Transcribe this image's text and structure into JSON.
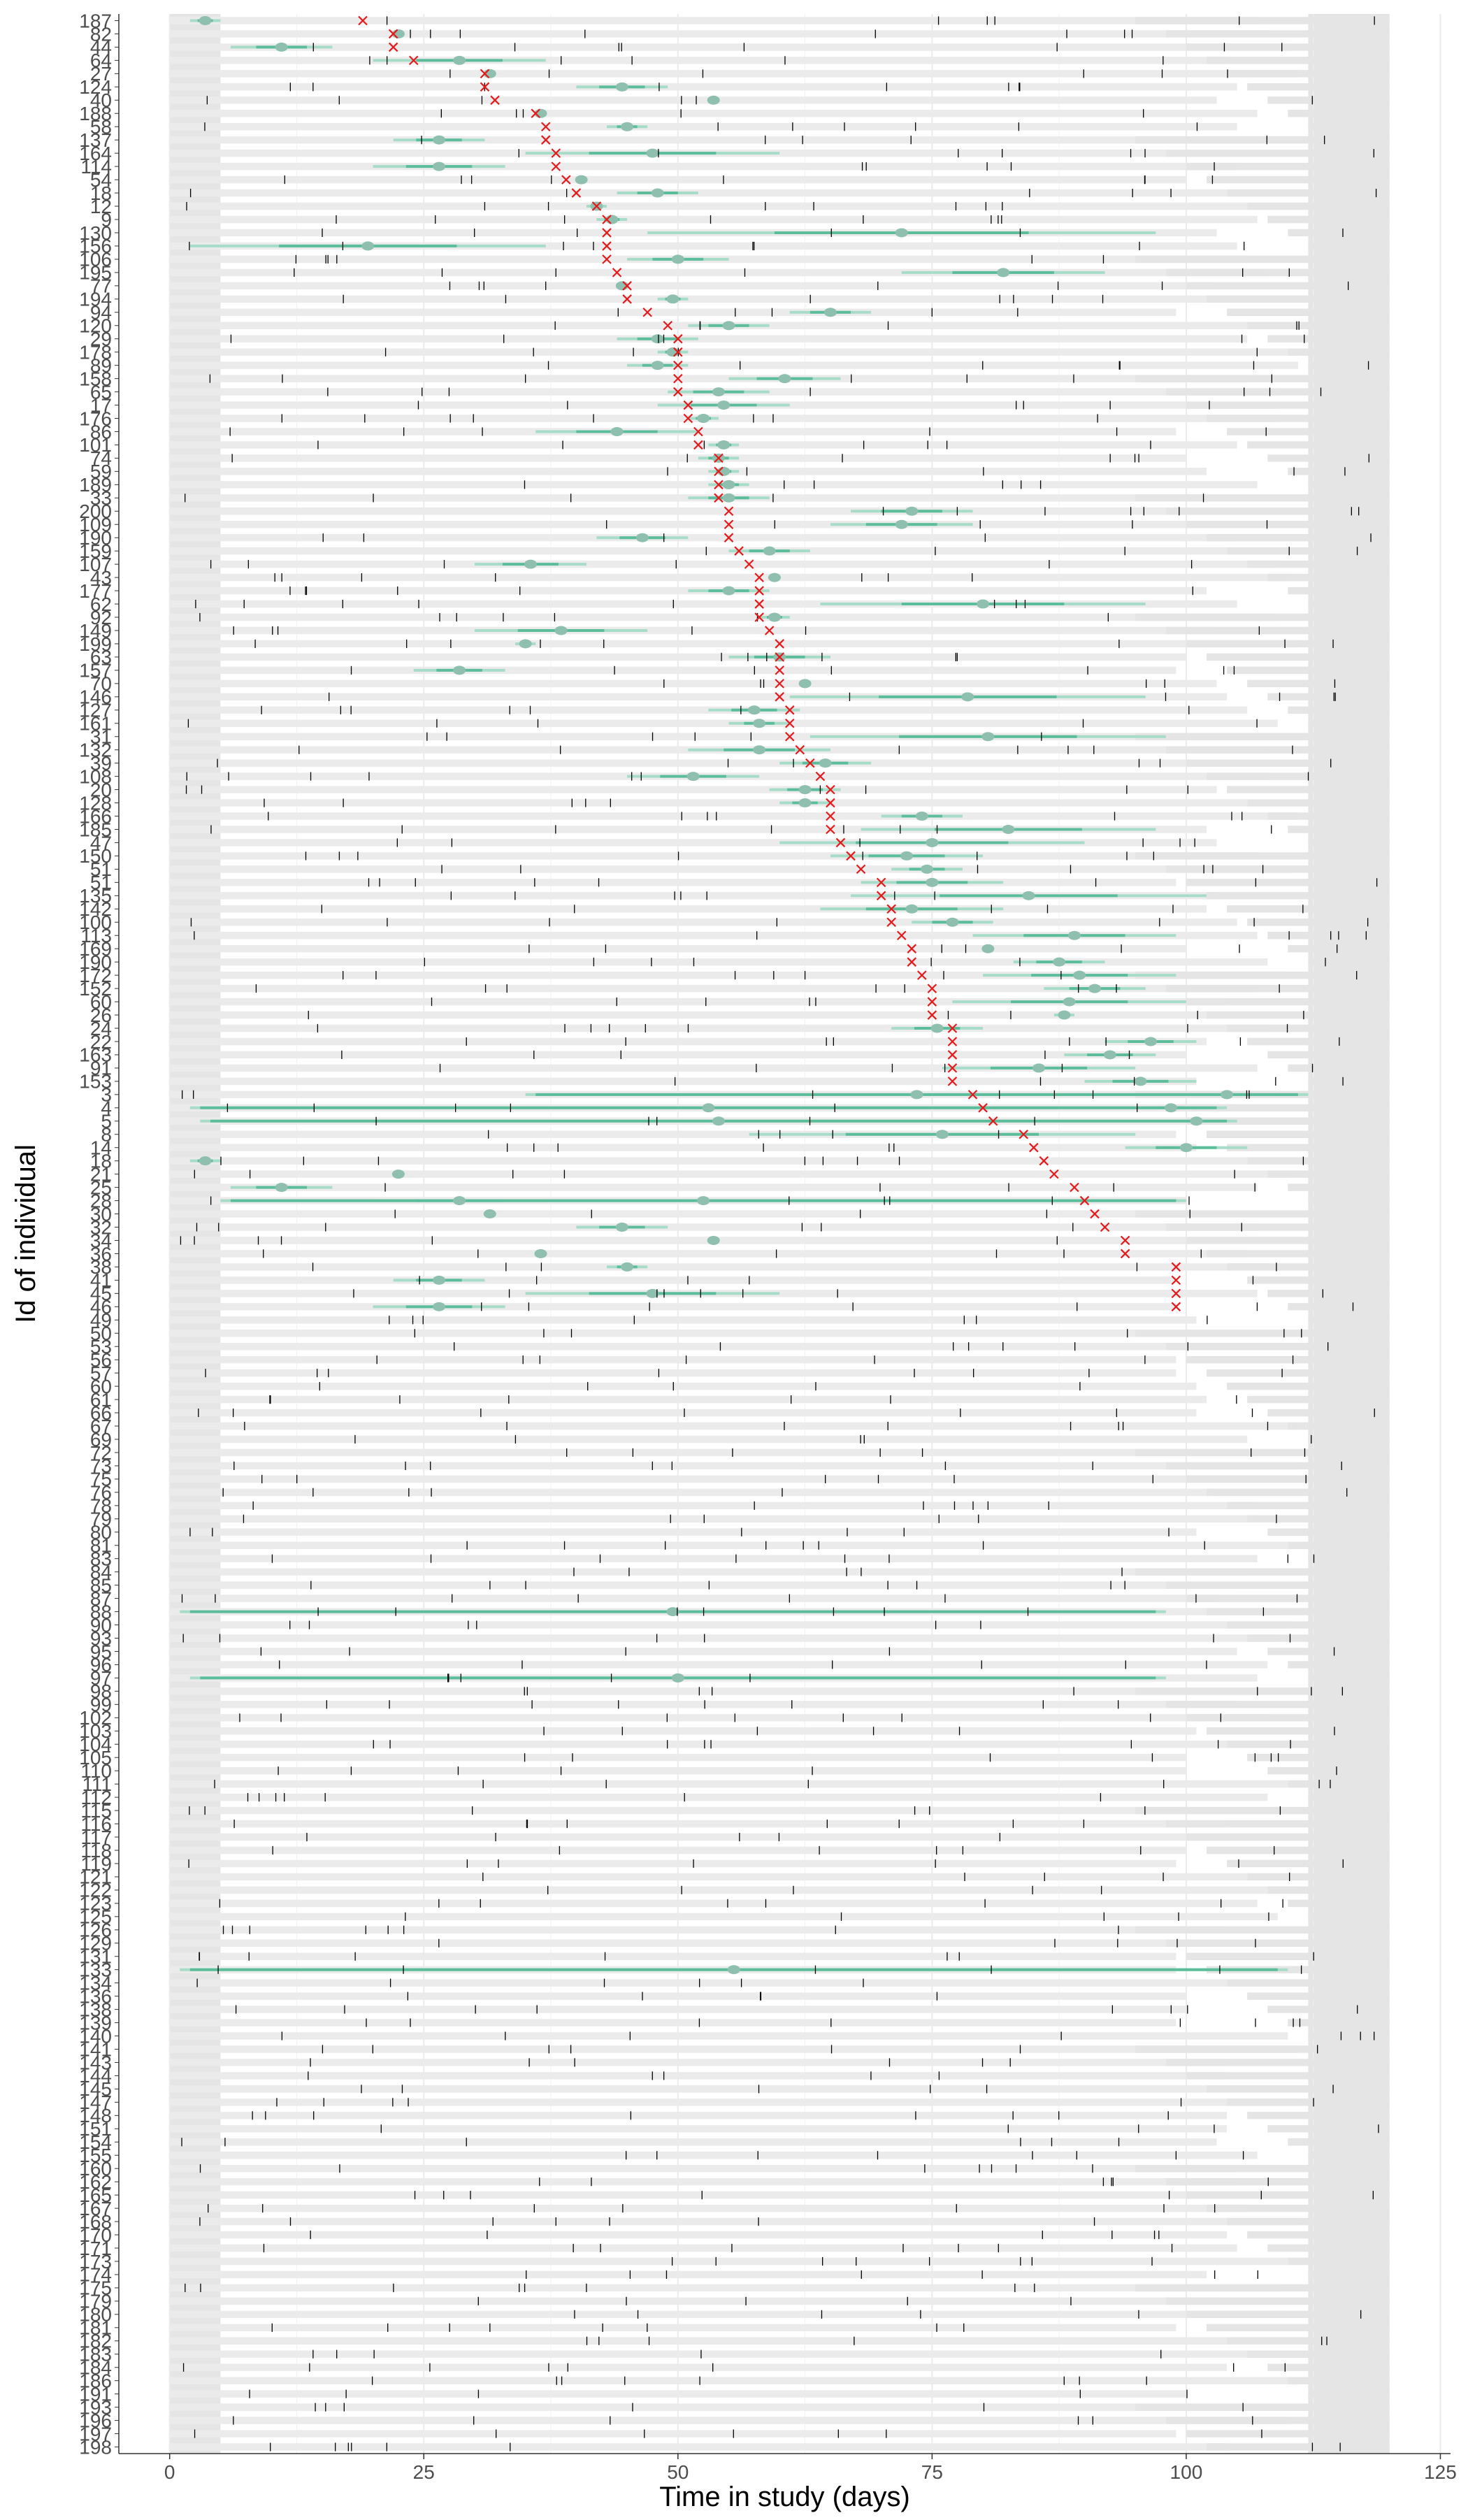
{
  "chart_data": {
    "type": "scatter",
    "title": "",
    "xlabel": "Time in study (days)",
    "ylabel": "Id of individual",
    "xlim": [
      -5,
      126
    ],
    "xticks": [
      0,
      25,
      50,
      75,
      100,
      125
    ],
    "grid": true,
    "legend": "none",
    "colors": {
      "panel": "#ffffff",
      "background_bar": "#ebebeb",
      "tail_shade": "#e5e5e5",
      "interval_outer": "#a6dcc8",
      "interval_inner": "#5cbd9b",
      "estimate": "#8fbfae",
      "event_marker": "#e41a1c",
      "visit_tick": "#000000",
      "grid": "#ebebeb"
    },
    "row_ids": [
      "187",
      "82",
      "44",
      "64",
      "27",
      "124",
      "40",
      "188",
      "58",
      "137",
      "164",
      "114",
      "54",
      "18",
      "12",
      "9",
      "130",
      "156",
      "106",
      "195",
      "77",
      "194",
      "94",
      "120",
      "29",
      "178",
      "89",
      "158",
      "65",
      "17",
      "176",
      "86",
      "101",
      "74",
      "59",
      "189",
      "33",
      "200",
      "109",
      "190",
      "159",
      "107",
      "43",
      "177",
      "62",
      "92",
      "149",
      "199",
      "63",
      "157",
      "70",
      "146",
      "127",
      "161",
      "31",
      "132",
      "39",
      "108",
      "20",
      "128",
      "166",
      "185",
      "47",
      "150",
      "51",
      "51",
      "135",
      "142",
      "100",
      "113",
      "169",
      "190",
      "172",
      "152",
      "60",
      "26",
      "24",
      "22",
      "163",
      "91",
      "153",
      "3",
      "4",
      "5",
      "8",
      "14",
      "18",
      "21",
      "25",
      "28",
      "30",
      "32",
      "34",
      "36",
      "38",
      "41",
      "45",
      "46",
      "49",
      "50",
      "53",
      "56",
      "57",
      "60",
      "61",
      "66",
      "67",
      "69",
      "72",
      "73",
      "75",
      "76",
      "78",
      "79",
      "80",
      "81",
      "83",
      "84",
      "85",
      "87",
      "88",
      "90",
      "93",
      "95",
      "96",
      "97",
      "98",
      "99",
      "102",
      "103",
      "104",
      "105",
      "110",
      "111",
      "112",
      "115",
      "116",
      "117",
      "118",
      "119",
      "121",
      "122",
      "123",
      "125",
      "126",
      "129",
      "131",
      "133",
      "134",
      "136",
      "138",
      "139",
      "140",
      "141",
      "143",
      "144",
      "145",
      "147",
      "148",
      "151",
      "154",
      "155",
      "160",
      "162",
      "165",
      "167",
      "168",
      "170",
      "171",
      "173",
      "174",
      "175",
      "179",
      "180",
      "181",
      "182",
      "183",
      "184",
      "186",
      "191",
      "193",
      "196",
      "197",
      "198"
    ],
    "event_days": [
      19,
      22,
      22,
      24,
      31,
      31,
      32,
      36,
      37,
      37,
      38,
      38,
      39,
      40,
      42,
      43,
      43,
      43,
      43,
      44,
      45,
      45,
      47,
      49,
      50,
      50,
      50,
      50,
      50,
      51,
      51,
      52,
      52,
      54,
      54,
      54,
      54,
      55,
      55,
      55,
      56,
      57,
      58,
      58,
      58,
      58,
      59,
      60,
      60,
      60,
      60,
      60,
      61,
      61,
      61,
      62,
      63,
      64,
      65,
      65,
      65,
      65,
      66,
      67,
      68,
      70,
      70,
      71,
      71,
      72,
      73,
      73,
      74,
      75,
      75,
      75,
      77,
      77,
      77,
      77,
      77,
      79,
      80,
      81,
      84,
      85,
      86,
      87,
      89,
      90,
      91,
      92,
      94,
      94,
      99,
      99,
      99,
      99
    ],
    "intervals_known_event": [
      [
        2,
        5
      ],
      [
        22,
        23
      ],
      [
        6,
        16
      ],
      [
        20,
        37
      ],
      [
        31,
        32
      ],
      [
        40,
        49
      ],
      [
        53,
        54
      ],
      [
        36,
        37
      ],
      [
        43,
        47
      ],
      [
        22,
        31
      ],
      [
        35,
        60
      ],
      [
        20,
        33
      ],
      [
        40,
        41
      ],
      [
        44,
        52
      ],
      [
        41,
        43
      ],
      [
        42,
        45
      ],
      [
        47,
        97
      ],
      [
        2,
        37
      ],
      [
        45,
        55
      ],
      [
        72,
        92
      ],
      [
        44,
        45
      ],
      [
        48,
        51
      ],
      [
        61,
        69
      ],
      [
        51,
        59
      ],
      [
        44,
        52
      ],
      [
        48,
        51
      ],
      [
        45,
        51
      ],
      [
        55,
        66
      ],
      [
        49,
        59
      ],
      [
        48,
        61
      ],
      [
        51,
        54
      ],
      [
        36,
        52
      ],
      [
        53,
        56
      ],
      [
        52,
        56
      ],
      [
        53,
        56
      ],
      [
        53,
        57
      ],
      [
        51,
        59
      ],
      [
        67,
        79
      ],
      [
        65,
        79
      ],
      [
        42,
        51
      ],
      [
        55,
        63
      ],
      [
        30,
        41
      ],
      [
        59,
        60
      ],
      [
        51,
        59
      ],
      [
        64,
        96
      ],
      [
        58,
        61
      ],
      [
        30,
        47
      ],
      [
        34,
        36
      ],
      [
        55,
        65
      ],
      [
        24,
        33
      ],
      [
        62,
        63
      ],
      [
        61,
        96
      ],
      [
        53,
        62
      ],
      [
        55,
        61
      ],
      [
        63,
        98
      ],
      [
        51,
        65
      ],
      [
        60,
        69
      ],
      [
        45,
        58
      ],
      [
        59,
        66
      ],
      [
        60,
        65
      ],
      [
        70,
        78
      ],
      [
        68,
        97
      ],
      [
        60,
        90
      ],
      [
        65,
        80
      ],
      [
        71,
        78
      ],
      [
        68,
        82
      ],
      [
        67,
        102
      ],
      [
        64,
        82
      ],
      [
        73,
        81
      ],
      [
        79,
        99
      ],
      [
        80,
        81
      ],
      [
        83,
        92
      ],
      [
        80,
        99
      ],
      [
        86,
        96
      ],
      [
        77,
        100
      ],
      [
        87,
        89
      ],
      [
        71,
        80
      ],
      [
        92,
        101
      ],
      [
        88,
        97
      ],
      [
        76,
        95
      ],
      [
        90,
        101
      ],
      [
        103,
        105
      ],
      [
        96,
        101
      ],
      [
        100,
        102
      ],
      [
        57,
        95
      ],
      [
        94,
        106
      ]
    ],
    "long_intervals_censored": [
      [
        35,
        112
      ],
      [
        2,
        104
      ],
      [
        3,
        105
      ],
      [
        5,
        100
      ],
      [
        1,
        98
      ],
      [
        2,
        98
      ],
      [
        1,
        110
      ]
    ],
    "censor_tail_start": [
      95,
      98,
      100,
      102,
      104,
      106,
      108,
      110,
      112
    ],
    "censor_tail_end": 120
  }
}
